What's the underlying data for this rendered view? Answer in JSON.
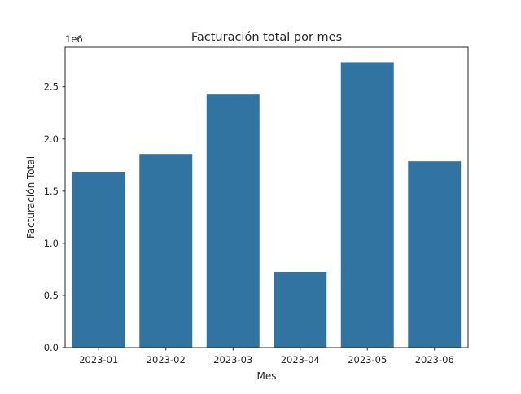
{
  "chart_data": {
    "type": "bar",
    "title": "Facturación total por mes",
    "xlabel": "Mes",
    "ylabel": "Facturación Total",
    "y_offset_text": "1e6",
    "categories": [
      "2023-01",
      "2023-02",
      "2023-03",
      "2023-04",
      "2023-05",
      "2023-06"
    ],
    "values": [
      1690000,
      1860000,
      2430000,
      730000,
      2740000,
      1790000
    ],
    "ylim": [
      0,
      2880000
    ],
    "yticks": [
      0,
      500000,
      1000000,
      1500000,
      2000000,
      2500000
    ],
    "ytick_labels": [
      "0.0",
      "0.5",
      "1.0",
      "1.5",
      "2.0",
      "2.5"
    ],
    "grid": false,
    "bar_color": "#3274a1"
  }
}
